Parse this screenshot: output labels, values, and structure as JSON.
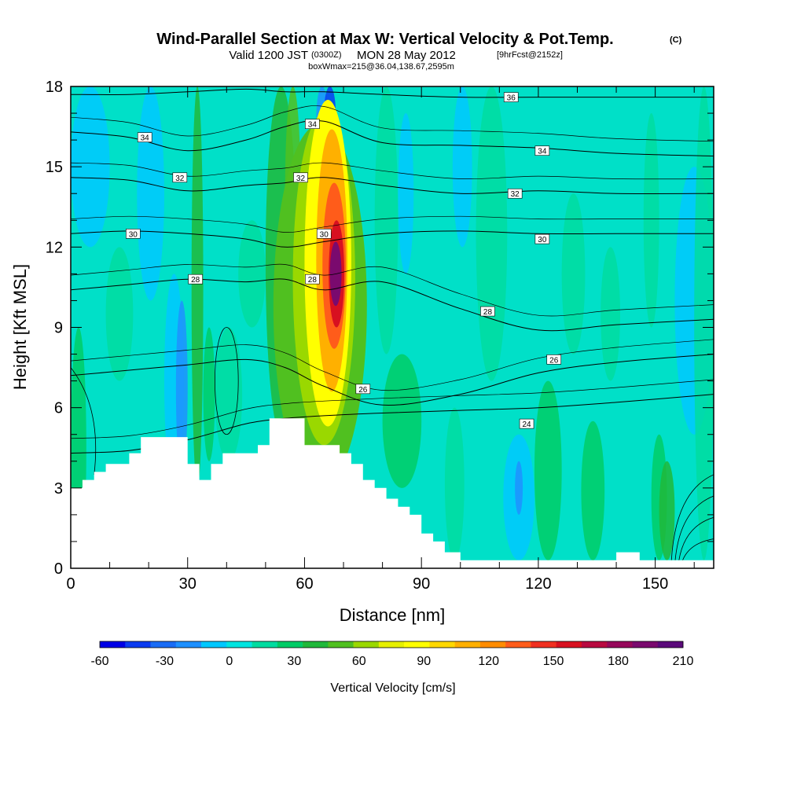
{
  "title": {
    "main": "Wind-Parallel Section at Max W: Vertical Velocity & Pot.Temp.",
    "copyright": "(C)",
    "valid_prefix": "Valid 1200 JST",
    "valid_utc": "(0300Z)",
    "valid_date": "MON 28 May 2012",
    "forecast": "[9hrFcst@2152z]",
    "boxinfo": "boxWmax=215@36.04,138.67,2595m"
  },
  "chart_data": {
    "type": "heatmap",
    "xlabel": "Distance [nm]",
    "ylabel": "Height [Kft MSL]",
    "xlim": [
      0,
      165
    ],
    "ylim": [
      0,
      18
    ],
    "x_ticks": [
      0,
      30,
      60,
      90,
      120,
      150
    ],
    "y_ticks": [
      0,
      3,
      6,
      9,
      12,
      15,
      18
    ],
    "colorbar": {
      "title": "Vertical Velocity [cm/s]",
      "min": -60,
      "max": 210,
      "step": 10,
      "tick_values": [
        -60,
        -30,
        0,
        30,
        60,
        90,
        120,
        150,
        180,
        210
      ],
      "colors": [
        "#0000e6",
        "#0b3bf0",
        "#1a6cf5",
        "#1e90ff",
        "#00c8ff",
        "#00e5e0",
        "#00dca0",
        "#00cc66",
        "#20b83a",
        "#50c020",
        "#9ad800",
        "#e6f000",
        "#ffff00",
        "#ffd800",
        "#ffb000",
        "#ff8c00",
        "#ff5c1a",
        "#f03020",
        "#d81020",
        "#b80a40",
        "#96085a",
        "#7a0a6e",
        "#5a0a7a"
      ]
    },
    "max_w_updraft": {
      "center_x": 68,
      "center_y": 11,
      "peak_value": 215
    },
    "theta_contours": [
      {
        "label": "24",
        "value": 24,
        "y": [
          4.3,
          4.4,
          4.8,
          5.4,
          5.6,
          5.7,
          5.8,
          5.9,
          6.0,
          6.2,
          6.5
        ]
      },
      {
        "label": "26",
        "value": 26,
        "y": [
          7.2,
          7.4,
          7.6,
          7.8,
          7.5,
          6.8,
          6.1,
          6.5,
          7.3,
          7.7,
          8.0
        ]
      },
      {
        "label": "28",
        "value": 28,
        "y": [
          10.4,
          10.6,
          10.8,
          10.7,
          10.8,
          10.4,
          10.7,
          9.7,
          8.9,
          9.1,
          9.3
        ]
      },
      {
        "label": "30",
        "value": 30,
        "y": [
          12.5,
          12.6,
          12.5,
          12.3,
          12.0,
          12.2,
          12.5,
          12.6,
          12.5,
          12.5,
          12.5
        ]
      },
      {
        "label": "32",
        "value": 32,
        "y": [
          14.6,
          14.5,
          14.1,
          14.3,
          14.4,
          14.6,
          14.3,
          14.0,
          14.1,
          14.0,
          14.0
        ]
      },
      {
        "label": "34",
        "value": 34,
        "y": [
          16.3,
          16.1,
          15.6,
          16.0,
          16.5,
          16.7,
          15.9,
          15.8,
          15.7,
          15.5,
          15.4
        ]
      },
      {
        "label": "36",
        "value": 36,
        "y": [
          17.7,
          17.7,
          17.8,
          17.9,
          17.8,
          17.8,
          17.7,
          17.6,
          17.6,
          17.6,
          17.6
        ]
      }
    ],
    "theta_x": [
      0,
      15,
      30,
      45,
      55,
      65,
      80,
      100,
      120,
      140,
      165
    ],
    "theta_label_positions": [
      {
        "label": "24",
        "x": 117,
        "y": 5.4
      },
      {
        "label": "26",
        "x": 124,
        "y": 7.8
      },
      {
        "label": "26",
        "x": 75,
        "y": 6.7
      },
      {
        "label": "28",
        "x": 32,
        "y": 10.8
      },
      {
        "label": "28",
        "x": 62,
        "y": 10.8
      },
      {
        "label": "28",
        "x": 107,
        "y": 9.6
      },
      {
        "label": "30",
        "x": 16,
        "y": 12.5
      },
      {
        "label": "30",
        "x": 65,
        "y": 12.5
      },
      {
        "label": "30",
        "x": 121,
        "y": 12.3
      },
      {
        "label": "32",
        "x": 28,
        "y": 14.6
      },
      {
        "label": "32",
        "x": 59,
        "y": 14.6
      },
      {
        "label": "32",
        "x": 114,
        "y": 14.0
      },
      {
        "label": "34",
        "x": 19,
        "y": 16.1
      },
      {
        "label": "34",
        "x": 62,
        "y": 16.6
      },
      {
        "label": "34",
        "x": 121,
        "y": 15.6
      },
      {
        "label": "36",
        "x": 113,
        "y": 17.6
      }
    ],
    "terrain": {
      "x": [
        0,
        3,
        6,
        9,
        12,
        15,
        18,
        21,
        24,
        30,
        33,
        36,
        39,
        45,
        48,
        51,
        57,
        60,
        63,
        66,
        69,
        72,
        75,
        78,
        81,
        84,
        87,
        90,
        93,
        96,
        100,
        110,
        120,
        130,
        140,
        143,
        146,
        149,
        152,
        155,
        158,
        165
      ],
      "height": [
        3.0,
        3.3,
        3.6,
        3.9,
        3.9,
        4.3,
        4.9,
        4.9,
        4.9,
        3.9,
        3.3,
        3.9,
        4.3,
        4.3,
        4.6,
        5.6,
        5.6,
        4.6,
        4.6,
        4.6,
        4.3,
        3.9,
        3.3,
        3.0,
        2.6,
        2.3,
        2.0,
        1.3,
        1.0,
        0.6,
        0.3,
        0.3,
        0.3,
        0.3,
        0.6,
        0.6,
        0.3,
        0.3,
        0.3,
        0.3,
        0.3,
        0.3
      ]
    }
  }
}
